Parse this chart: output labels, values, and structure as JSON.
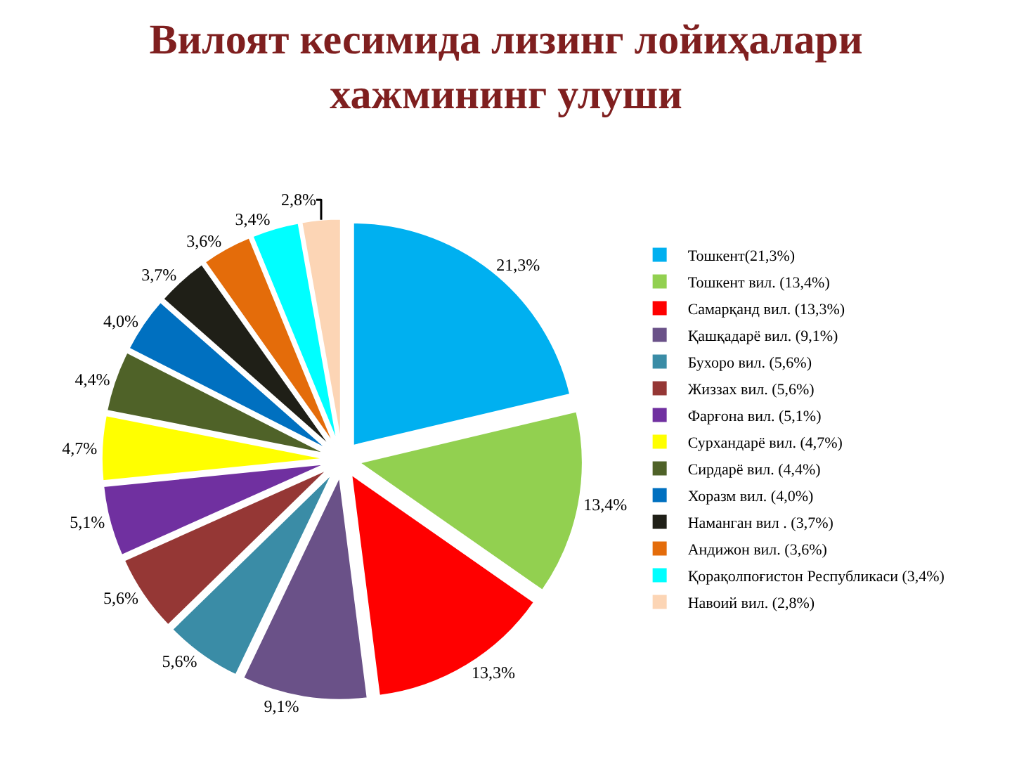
{
  "chart_data": {
    "type": "pie",
    "title": "Вилоят кесимида лизинг лойиҳалари хажмининг улуши",
    "categories": [
      "Тошкент(21,3%)",
      "Тошкент вил. (13,4%)",
      "Самарқанд вил. (13,3%)",
      "Қашқадарё вил. (9,1%)",
      "Бухоро вил. (5,6%)",
      "Жиззах вил. (5,6%)",
      "Фарғона вил. (5,1%)",
      "Сурхандарё вил. (4,7%)",
      "Сирдарё вил. (4,4%)",
      "Хоразм вил. (4,0%)",
      "Наманган вил . (3,7%)",
      "Андижон вил. (3,6%)",
      "Қорақолпоғистон Республикаси (3,4%)",
      "Навоий вил. (2,8%)"
    ],
    "values": [
      21.3,
      13.4,
      13.3,
      9.1,
      5.6,
      5.6,
      5.1,
      4.7,
      4.4,
      4.0,
      3.7,
      3.6,
      3.4,
      2.8
    ],
    "value_labels": [
      "21,3%",
      "13,4%",
      "13,3%",
      "9,1%",
      "5,6%",
      "5,6%",
      "5,1%",
      "4,7%",
      "4,4%",
      "4,0%",
      "3,7%",
      "3,6%",
      "3,4%",
      "2,8%"
    ],
    "colors": [
      "#00b0f0",
      "#92d050",
      "#ff0000",
      "#6a5188",
      "#3a8ca6",
      "#953735",
      "#7030a0",
      "#ffff00",
      "#4f6228",
      "#0070c0",
      "#1f1f17",
      "#e46c0a",
      "#00ffff",
      "#fcd5b5"
    ],
    "legend": "right"
  }
}
